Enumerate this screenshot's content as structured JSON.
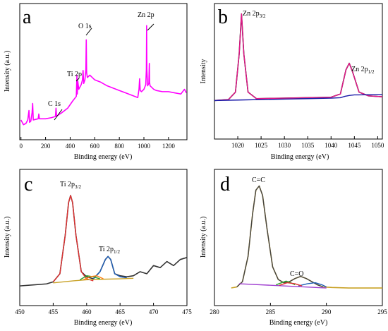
{
  "chart_data": [
    {
      "panel": "a",
      "type": "line",
      "letter": "a",
      "xlabel": "Binding energy (eV)",
      "ylabel": "Intensity (a.u.)",
      "xlim": [
        -10,
        1350
      ],
      "ylim": [
        0,
        100
      ],
      "xticks": [
        0,
        200,
        400,
        600,
        800,
        1000,
        1200
      ],
      "series": [
        {
          "color": "#ff00ff",
          "x": [
            0,
            20,
            40,
            55,
            65,
            70,
            80,
            90,
            95,
            100,
            140,
            145,
            150,
            160,
            200,
            250,
            280,
            285,
            290,
            300,
            330,
            380,
            420,
            450,
            455,
            458,
            462,
            470,
            490,
            500,
            505,
            510,
            520,
            528,
            531,
            534,
            540,
            560,
            580,
            600,
            650,
            700,
            750,
            800,
            850,
            900,
            950,
            960,
            965,
            970,
            980,
            1000,
            1015,
            1020,
            1022,
            1024,
            1030,
            1040,
            1044,
            1046,
            1050,
            1060,
            1080,
            1100,
            1150,
            1200,
            1250,
            1300,
            1330,
            1345
          ],
          "y": [
            12,
            8,
            9,
            12,
            20,
            10,
            11,
            18,
            26,
            12,
            13,
            17,
            13,
            13,
            13,
            14,
            15,
            22,
            15,
            16,
            18,
            22,
            28,
            32,
            50,
            34,
            45,
            38,
            42,
            46,
            54,
            43,
            46,
            55,
            80,
            52,
            48,
            50,
            48,
            46,
            44,
            41,
            39,
            37,
            35,
            33,
            31,
            38,
            47,
            37,
            36,
            38,
            42,
            55,
            92,
            55,
            41,
            43,
            60,
            44,
            41,
            40,
            38,
            37,
            36,
            36,
            35,
            34,
            38,
            35
          ]
        }
      ],
      "annotations": [
        "C 1s",
        "Ti 2p",
        "O 1s",
        "Zn 2p"
      ]
    },
    {
      "panel": "b",
      "type": "line",
      "letter": "b",
      "xlabel": "Binding energy (eV)",
      "ylabel": "Intensity",
      "xlim": [
        1015,
        1051
      ],
      "ylim": [
        0,
        100
      ],
      "xticks": [
        1020,
        1025,
        1030,
        1035,
        1040,
        1045,
        1050
      ],
      "series": [
        {
          "color": "#111111",
          "x": [
            1015,
            1018,
            1019.5,
            1020.3,
            1020.8,
            1021.3,
            1022.2,
            1024,
            1030,
            1040,
            1042,
            1043.2,
            1043.9,
            1044.6,
            1046,
            1048,
            1051
          ],
          "y": [
            5,
            6,
            14,
            55,
            98,
            55,
            14,
            7,
            7.5,
            8.5,
            12,
            38,
            45,
            36,
            14,
            10,
            9
          ]
        },
        {
          "color": "#e8188a",
          "x": [
            1015,
            1018,
            1019.5,
            1020.3,
            1020.8,
            1021.3,
            1022.2,
            1024,
            1030,
            1040,
            1042,
            1043.2,
            1043.9,
            1044.6,
            1046,
            1048,
            1051
          ],
          "y": [
            5,
            6,
            14,
            55,
            98,
            55,
            14,
            7,
            7.5,
            8.5,
            12,
            38,
            45,
            36,
            14,
            10,
            9
          ]
        },
        {
          "color": "#1a1aa8",
          "x": [
            1015,
            1020,
            1025,
            1030,
            1035,
            1040,
            1042,
            1043,
            1044,
            1045,
            1048,
            1051
          ],
          "y": [
            5,
            5.5,
            6,
            6.5,
            7,
            7.5,
            8,
            9.5,
            10.5,
            11,
            11.2,
            11.3
          ]
        }
      ],
      "annotations": [
        "Zn 2p",
        "3/2",
        "Zn 2p",
        "1/2"
      ]
    },
    {
      "panel": "c",
      "type": "line",
      "letter": "c",
      "xlabel": "Binding energy (eV)",
      "ylabel": "Intensity (a.u.)",
      "xlim": [
        450,
        475
      ],
      "ylim": [
        0,
        100
      ],
      "xticks": [
        450,
        455,
        460,
        465,
        470,
        475
      ],
      "series": [
        {
          "color": "#333333",
          "x": [
            450,
            452,
            454,
            455,
            456,
            456.8,
            457.3,
            457.6,
            457.9,
            458.4,
            459.2,
            460,
            461,
            462,
            462.8,
            463.2,
            463.6,
            464.2,
            465,
            466,
            467,
            468,
            469,
            470,
            471,
            472,
            473,
            474,
            475
          ],
          "y": [
            2,
            3,
            4,
            6,
            14,
            52,
            84,
            91,
            84,
            52,
            16,
            11,
            9,
            16,
            28,
            31,
            28,
            14,
            12,
            11,
            12,
            16,
            14,
            22,
            20,
            26,
            22,
            28,
            30
          ]
        },
        {
          "color": "#e03030",
          "x": [
            455,
            456,
            456.8,
            457.3,
            457.6,
            457.9,
            458.4,
            459.2,
            460,
            461
          ],
          "y": [
            6,
            14,
            52,
            84,
            91,
            84,
            52,
            16,
            9,
            7
          ]
        },
        {
          "color": "#1f5fb8",
          "x": [
            461,
            462,
            462.8,
            463.2,
            463.6,
            464.2,
            465,
            466
          ],
          "y": [
            9,
            16,
            28,
            31,
            28,
            14,
            11,
            10
          ]
        },
        {
          "color": "#c9a227",
          "x": [
            455,
            458,
            460,
            462,
            465,
            467
          ],
          "y": [
            5,
            7,
            8,
            8.5,
            9,
            9.5
          ]
        },
        {
          "color": "#2da02d",
          "x": [
            459,
            460,
            461,
            462
          ],
          "y": [
            8,
            12,
            11,
            9
          ]
        },
        {
          "color": "#ff7f0e",
          "x": [
            459.5,
            460.5,
            461.5,
            462.5
          ],
          "y": [
            8,
            11,
            12,
            9
          ]
        }
      ],
      "annotations": [
        "Ti 2p",
        "3/2",
        "Ti 2p",
        "1/2"
      ]
    },
    {
      "panel": "d",
      "type": "line",
      "letter": "d",
      "xlabel": "Binding energy (eV)",
      "ylabel": "Intensity (a.u.)",
      "xlim": [
        280,
        295
      ],
      "ylim": [
        0,
        100
      ],
      "xticks": [
        280,
        285,
        290,
        295
      ],
      "series": [
        {
          "color": "#c9a227",
          "x": [
            281.5,
            282,
            282.5,
            283,
            283.4,
            283.7,
            284,
            284.3,
            284.7,
            285.2,
            285.7,
            286.2,
            286.7,
            287.2,
            287.7,
            288.2,
            288.7,
            289.2,
            289.7,
            290.5,
            292,
            293.5,
            295
          ],
          "y": [
            2,
            3,
            8,
            32,
            72,
            95,
            99,
            90,
            58,
            22,
            10,
            7,
            8,
            11,
            13,
            11,
            8,
            5,
            3,
            2.5,
            2,
            2,
            2
          ]
        },
        {
          "color": "#444444",
          "x": [
            282,
            282.5,
            283,
            283.4,
            283.7,
            284,
            284.3,
            284.7,
            285.2,
            285.7,
            286.2,
            286.7,
            287.2,
            287.7,
            288.2,
            288.7,
            289.2,
            289.7
          ],
          "y": [
            3,
            8,
            32,
            72,
            95,
            99,
            90,
            58,
            22,
            10,
            7,
            8,
            11,
            13,
            11,
            8,
            5,
            3
          ]
        },
        {
          "color": "#a040d0",
          "x": [
            282.2,
            290
          ],
          "y": [
            6,
            2
          ]
        },
        {
          "color": "#2da02d",
          "x": [
            285.5,
            286,
            286.4,
            286.8,
            287.2
          ],
          "y": [
            5,
            7,
            8.5,
            7,
            5
          ]
        },
        {
          "color": "#1f5fb8",
          "x": [
            287.5,
            288.3,
            289,
            289.6,
            290
          ],
          "y": [
            4,
            6,
            7,
            5,
            3
          ]
        },
        {
          "color": "#e03030",
          "x": [
            285.8,
            286.5,
            287.2,
            287.8
          ],
          "y": [
            4.5,
            7,
            6,
            4
          ]
        }
      ],
      "annotations": [
        "C=C",
        "C=O"
      ]
    }
  ]
}
